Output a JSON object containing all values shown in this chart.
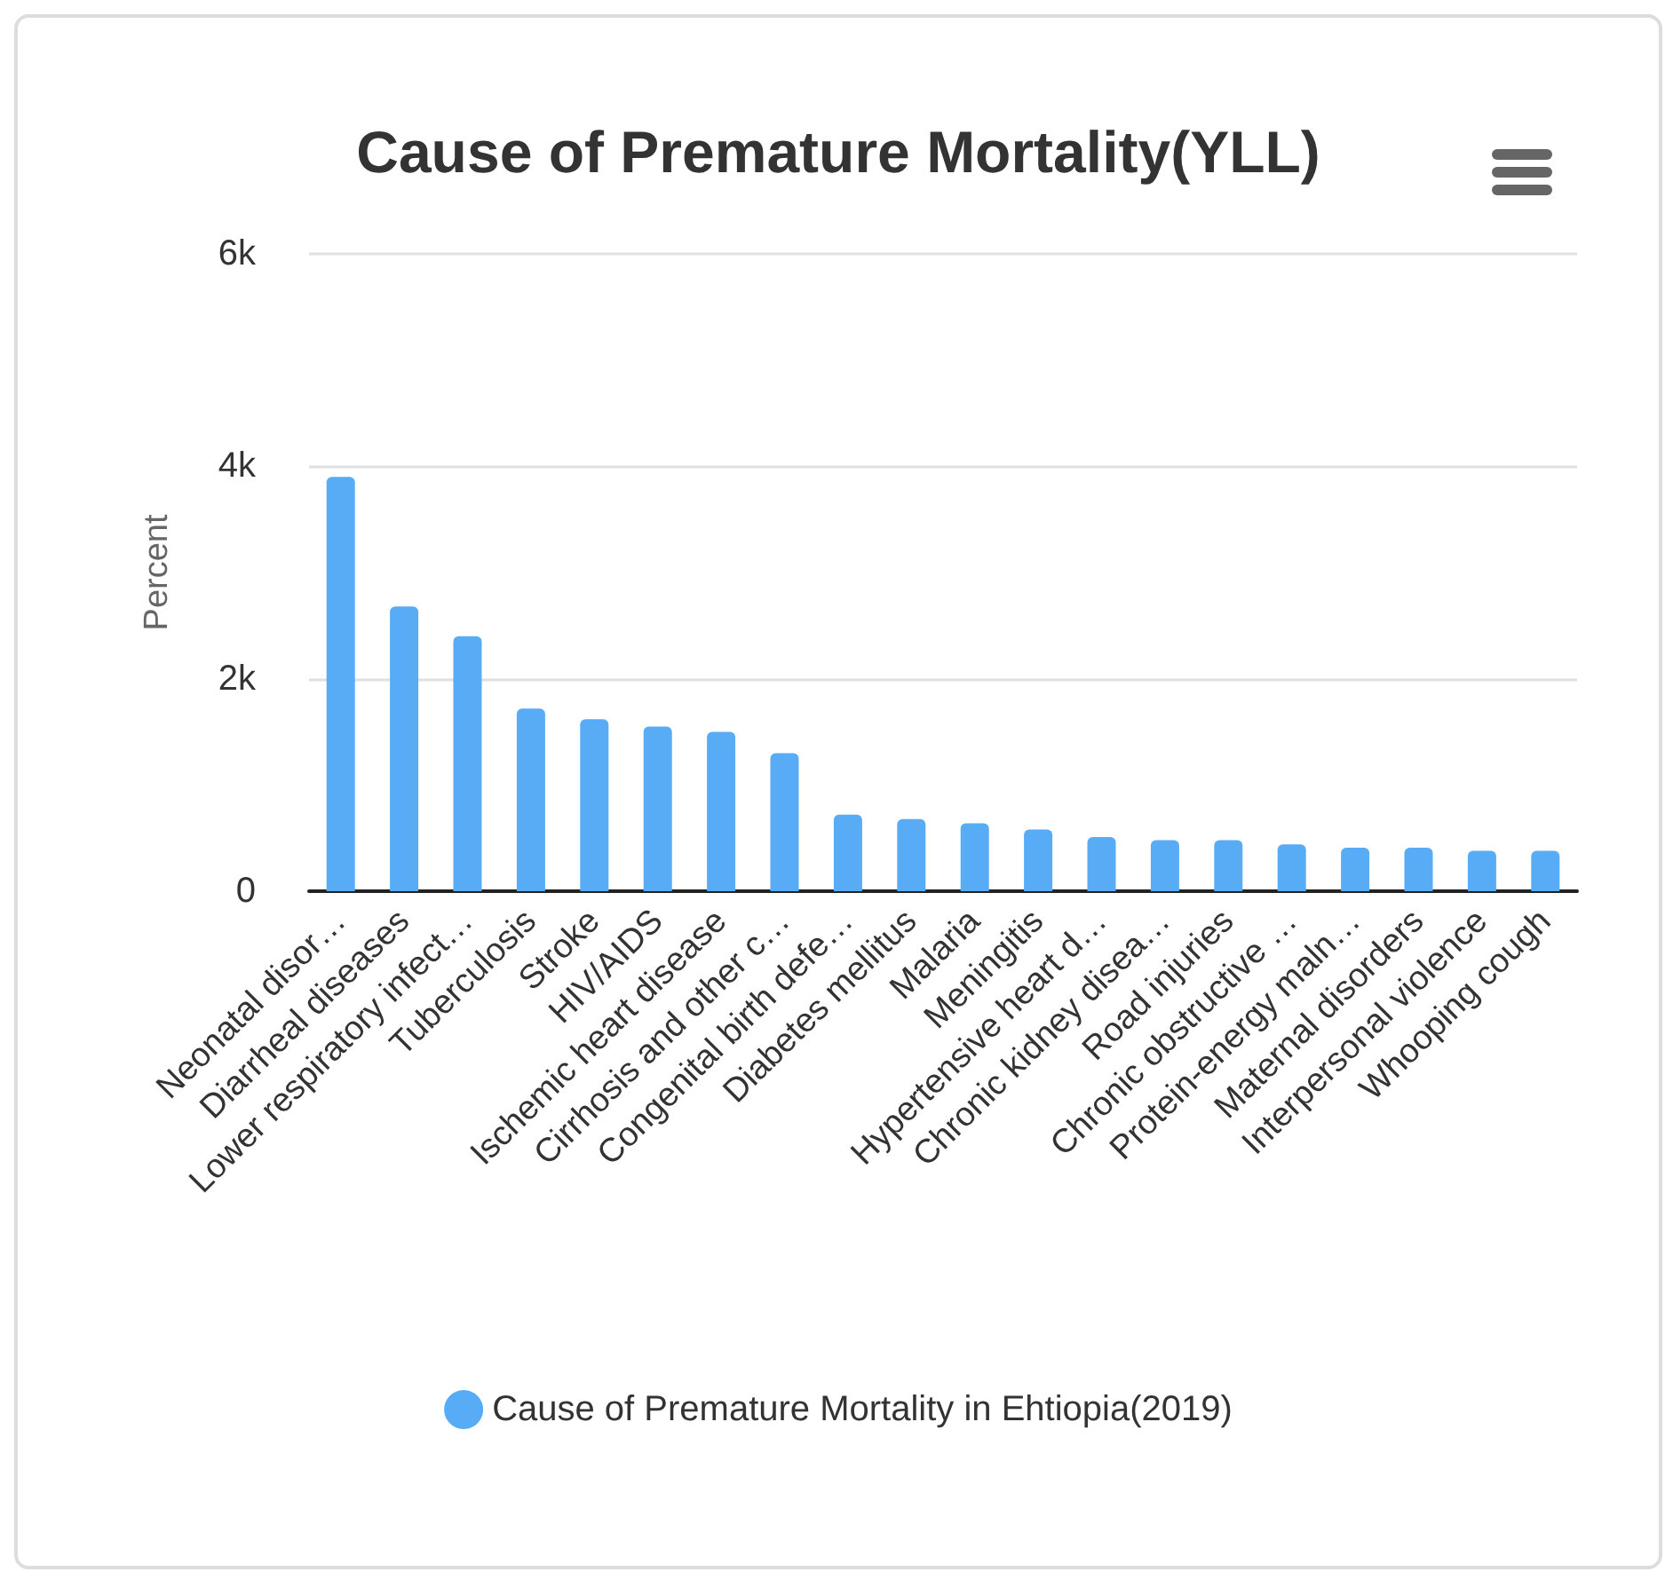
{
  "chart_data": {
    "type": "bar",
    "title": "Cause of Premature Mortality(YLL)",
    "ylabel": "Percent",
    "categories": [
      "Neonatal disor…",
      "Diarrheal diseases",
      "Lower respiratory infect…",
      "Tuberculosis",
      "Stroke",
      "HIV/AIDS",
      "Ischemic heart disease",
      "Cirrhosis and other c…",
      "Congenital birth defe…",
      "Diabetes mellitus",
      "Malaria",
      "Meningitis",
      "Hypertensive heart d…",
      "Chronic kidney disea…",
      "Road injuries",
      "Chronic obstructive …",
      "Protein-energy maln…",
      "Maternal disorders",
      "Interpersonal violence",
      "Whooping cough"
    ],
    "series": [
      {
        "name": "Cause of Premature Mortality in Ehtiopia(2019)",
        "color": "#58acf6",
        "values": [
          3900,
          2680,
          2400,
          1720,
          1620,
          1550,
          1500,
          1300,
          720,
          680,
          640,
          580,
          510,
          480,
          480,
          440,
          410,
          410,
          380,
          380
        ]
      }
    ],
    "ylim": [
      0,
      6000
    ],
    "yticks": [
      {
        "value": 0,
        "label": "0"
      },
      {
        "value": 2000,
        "label": "2k"
      },
      {
        "value": 4000,
        "label": "4k"
      },
      {
        "value": 6000,
        "label": "6k"
      }
    ],
    "grid": "y",
    "legend": "bottom"
  }
}
